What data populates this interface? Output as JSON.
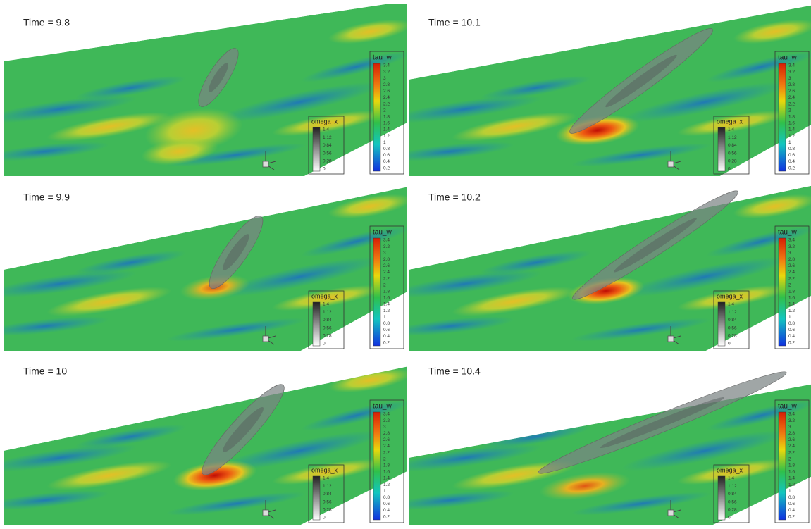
{
  "panels": [
    {
      "title": "Time = 9.8"
    },
    {
      "title": "Time = 10.1"
    },
    {
      "title": "Time = 9.9"
    },
    {
      "title": "Time = 10.2"
    },
    {
      "title": "Time = 10"
    },
    {
      "title": "Time = 10.4"
    }
  ],
  "tau_legend": {
    "title": "tau_w",
    "labels": [
      "3.4",
      "3.2",
      "3",
      "2.8",
      "2.6",
      "2.4",
      "2.2",
      "2",
      "1.8",
      "1.6",
      "1.4",
      "1.2",
      "1",
      "0.8",
      "0.6",
      "0.4",
      "0.2"
    ]
  },
  "omega_legend": {
    "title": "omega_x",
    "labels": [
      "1.4",
      "1.12",
      "0.84",
      "0.56",
      "0.28",
      "0"
    ]
  }
}
